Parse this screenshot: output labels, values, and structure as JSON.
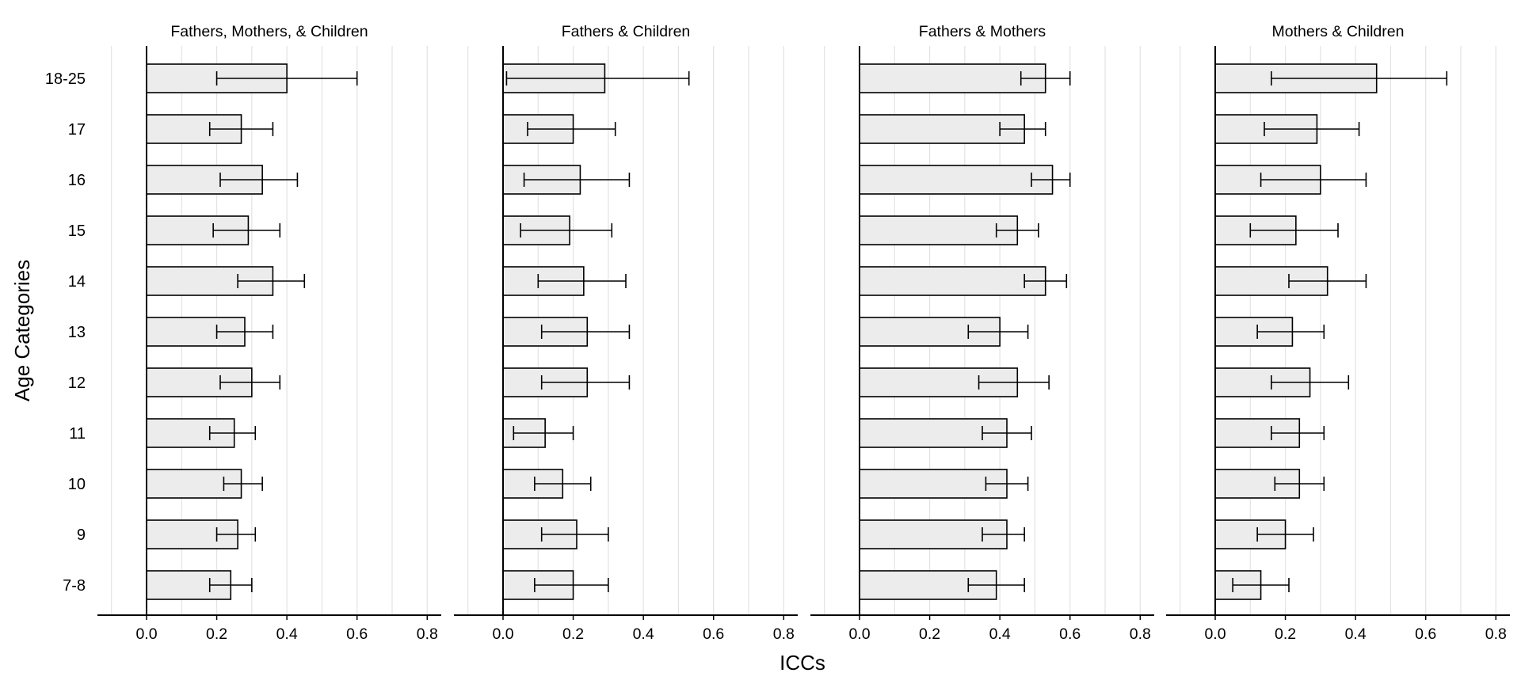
{
  "chart_data": {
    "type": "bar",
    "orientation": "horizontal",
    "xlabel": "ICCs",
    "ylabel": "Age Categories",
    "xlim": [
      -0.14,
      0.84
    ],
    "xticks": [
      "0.0",
      "0.2",
      "0.4",
      "0.6",
      "0.8"
    ],
    "grid": "vertical",
    "bar_color": "#ececec",
    "bar_edge_color": "#000000",
    "categories": [
      "18-25",
      "17",
      "16",
      "15",
      "14",
      "13",
      "12",
      "11",
      "10",
      "9",
      "7-8"
    ],
    "panels": [
      {
        "title": "Fathers, Mothers, & Children",
        "values": [
          0.4,
          0.27,
          0.33,
          0.29,
          0.36,
          0.28,
          0.3,
          0.25,
          0.27,
          0.26,
          0.24
        ],
        "ci_low": [
          0.2,
          0.18,
          0.21,
          0.19,
          0.26,
          0.2,
          0.21,
          0.18,
          0.22,
          0.2,
          0.18
        ],
        "ci_high": [
          0.6,
          0.36,
          0.43,
          0.38,
          0.45,
          0.36,
          0.38,
          0.31,
          0.33,
          0.31,
          0.3
        ]
      },
      {
        "title": "Fathers & Children",
        "values": [
          0.29,
          0.2,
          0.22,
          0.19,
          0.23,
          0.24,
          0.24,
          0.12,
          0.17,
          0.21,
          0.2
        ],
        "ci_low": [
          0.01,
          0.07,
          0.06,
          0.05,
          0.1,
          0.11,
          0.11,
          0.03,
          0.09,
          0.11,
          0.09
        ],
        "ci_high": [
          0.53,
          0.32,
          0.36,
          0.31,
          0.35,
          0.36,
          0.36,
          0.2,
          0.25,
          0.3,
          0.3
        ]
      },
      {
        "title": "Fathers & Mothers",
        "values": [
          0.53,
          0.47,
          0.55,
          0.45,
          0.53,
          0.4,
          0.45,
          0.42,
          0.42,
          0.42,
          0.39
        ],
        "ci_low": [
          0.46,
          0.4,
          0.49,
          0.39,
          0.47,
          0.31,
          0.34,
          0.35,
          0.36,
          0.35,
          0.31
        ],
        "ci_high": [
          0.6,
          0.53,
          0.6,
          0.51,
          0.59,
          0.48,
          0.54,
          0.49,
          0.48,
          0.47,
          0.47
        ]
      },
      {
        "title": "Mothers & Children",
        "values": [
          0.46,
          0.29,
          0.3,
          0.23,
          0.32,
          0.22,
          0.27,
          0.24,
          0.24,
          0.2,
          0.13
        ],
        "ci_low": [
          0.16,
          0.14,
          0.13,
          0.1,
          0.21,
          0.12,
          0.16,
          0.16,
          0.17,
          0.12,
          0.05
        ],
        "ci_high": [
          0.66,
          0.41,
          0.43,
          0.35,
          0.43,
          0.31,
          0.38,
          0.31,
          0.31,
          0.28,
          0.21
        ]
      }
    ]
  }
}
